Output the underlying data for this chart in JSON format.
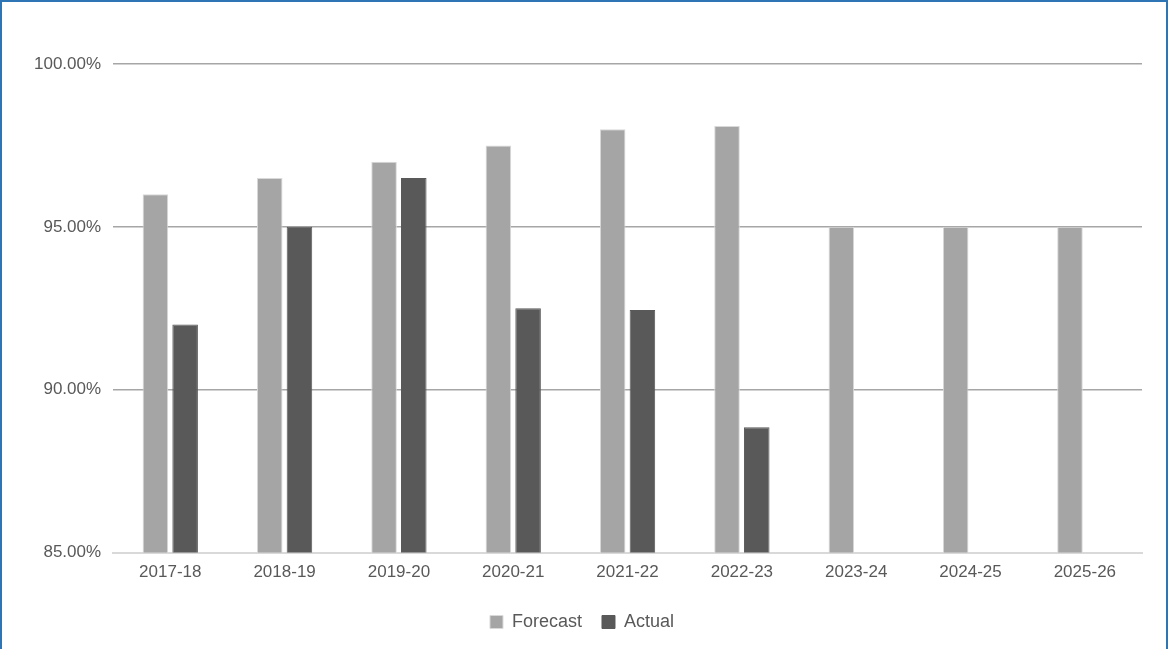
{
  "chart_data": {
    "type": "bar",
    "categories": [
      "2017-18",
      "2018-19",
      "2019-20",
      "2020-21",
      "2021-22",
      "2022-23",
      "2023-24",
      "2024-25",
      "2025-26"
    ],
    "series": [
      {
        "name": "Forecast",
        "color": "#a5a5a5",
        "values": [
          96.0,
          96.5,
          97.0,
          97.5,
          98.0,
          98.1,
          95.0,
          95.0,
          95.0
        ]
      },
      {
        "name": "Actual",
        "color": "#595959",
        "values": [
          92.0,
          95.0,
          96.5,
          92.5,
          92.45,
          88.85,
          null,
          null,
          null
        ]
      }
    ],
    "ylim": [
      85,
      100
    ],
    "yticks": [
      {
        "value": 85,
        "label": "85.00%"
      },
      {
        "value": 90,
        "label": "90.00%"
      },
      {
        "value": 95,
        "label": "95.00%"
      },
      {
        "value": 100,
        "label": "100.00%"
      }
    ],
    "grid": "y",
    "legend": "bottom"
  }
}
